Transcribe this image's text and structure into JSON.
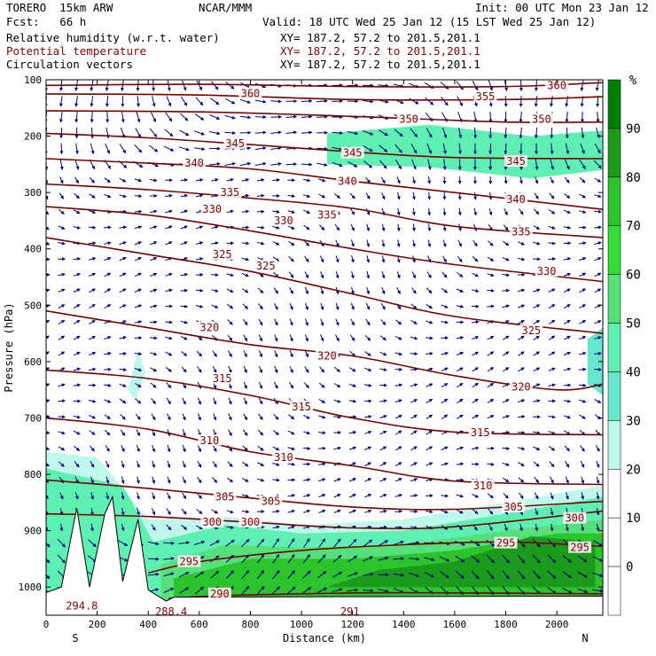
{
  "header": {
    "model": "TORERO  15km ARW",
    "center": "NCAR/MMM",
    "init": "Init: 00 UTC Mon 23 Jan 12",
    "fcst": "Fcst:   66 h",
    "valid": "Valid: 18 UTC Wed 25 Jan 12 (15 LST Wed 25 Jan 12)",
    "fields": [
      {
        "name": "Relative humidity (w.r.t. water)",
        "xy": "XY= 187.2, 57.2 to 201.5,201.1",
        "color": "#000000"
      },
      {
        "name": "Potential temperature",
        "xy": "XY= 187.2, 57.2 to 201.5,201.1",
        "color": "#8b0000"
      },
      {
        "name": "Circulation vectors",
        "xy": "XY= 187.2, 57.2 to 201.5,201.1",
        "color": "#000000"
      }
    ]
  },
  "chart_data": {
    "type": "contour",
    "xlabel": "Distance (km)",
    "ylabel": "Pressure (hPa)",
    "x_ticks": [
      0,
      200,
      400,
      600,
      800,
      1000,
      1200,
      1400,
      1600,
      1800,
      2000
    ],
    "xlim": [
      0,
      2180
    ],
    "y_ticks": [
      100,
      200,
      300,
      400,
      500,
      600,
      700,
      800,
      900,
      1000
    ],
    "ylim": [
      1050,
      100
    ],
    "x_end_labels": {
      "left": "S",
      "right": "N"
    },
    "colorbar": {
      "unit": "%",
      "ticks": [
        90,
        80,
        70,
        60,
        50,
        40,
        30,
        20,
        10,
        0
      ],
      "colors": [
        "#008000",
        "#1b9a1b",
        "#2bc42b",
        "#33dd33",
        "#55e07a",
        "#5ef0b0",
        "#66e6cc",
        "#bff7ec",
        "#ffffff",
        "#ffffff",
        "#ffffff"
      ]
    },
    "theta_contours": [
      {
        "value": 360,
        "points": [
          [
            0,
            110
          ],
          [
            600,
            108
          ],
          [
            1200,
            112
          ],
          [
            1800,
            112
          ],
          [
            2180,
            105
          ]
        ],
        "labels": [
          [
            800,
            124
          ],
          [
            2000,
            110
          ]
        ]
      },
      {
        "value": 355,
        "points": [
          [
            0,
            125
          ],
          [
            600,
            127
          ],
          [
            1200,
            135
          ],
          [
            1800,
            135
          ],
          [
            2180,
            130
          ]
        ],
        "labels": [
          [
            1720,
            130
          ]
        ]
      },
      {
        "value": 350,
        "points": [
          [
            0,
            155
          ],
          [
            600,
            157
          ],
          [
            1200,
            165
          ],
          [
            1800,
            175
          ],
          [
            2180,
            175
          ]
        ],
        "labels": [
          [
            1420,
            170
          ],
          [
            1940,
            170
          ]
        ]
      },
      {
        "value": 345,
        "points": [
          [
            0,
            195
          ],
          [
            400,
            203
          ],
          [
            800,
            215
          ],
          [
            1200,
            228
          ],
          [
            1600,
            238
          ],
          [
            2180,
            240
          ]
        ],
        "labels": [
          [
            740,
            213
          ],
          [
            1200,
            230
          ],
          [
            1840,
            245
          ]
        ]
      },
      {
        "value": 340,
        "points": [
          [
            0,
            240
          ],
          [
            400,
            248
          ],
          [
            800,
            258
          ],
          [
            1200,
            280
          ],
          [
            1600,
            300
          ],
          [
            2180,
            330
          ]
        ],
        "labels": [
          [
            580,
            248
          ],
          [
            1180,
            280
          ],
          [
            1840,
            312
          ]
        ]
      },
      {
        "value": 335,
        "points": [
          [
            0,
            285
          ],
          [
            400,
            295
          ],
          [
            800,
            310
          ],
          [
            1200,
            328
          ],
          [
            1600,
            360
          ],
          [
            2180,
            380
          ]
        ],
        "labels": [
          [
            720,
            300
          ],
          [
            1100,
            340
          ],
          [
            1860,
            370
          ]
        ]
      },
      {
        "value": 330,
        "points": [
          [
            0,
            325
          ],
          [
            400,
            340
          ],
          [
            800,
            368
          ],
          [
            1200,
            400
          ],
          [
            1600,
            428
          ],
          [
            2180,
            458
          ]
        ],
        "labels": [
          [
            650,
            330
          ],
          [
            930,
            350
          ],
          [
            1960,
            440
          ]
        ]
      },
      {
        "value": 325,
        "points": [
          [
            0,
            380
          ],
          [
            400,
            410
          ],
          [
            800,
            440
          ],
          [
            1200,
            480
          ],
          [
            1600,
            520
          ],
          [
            2180,
            550
          ]
        ],
        "labels": [
          [
            690,
            410
          ],
          [
            860,
            430
          ],
          [
            1900,
            545
          ]
        ]
      },
      {
        "value": 320,
        "points": [
          [
            0,
            510
          ],
          [
            400,
            540
          ],
          [
            800,
            570
          ],
          [
            1200,
            590
          ],
          [
            1600,
            625
          ],
          [
            2000,
            650
          ],
          [
            2180,
            640
          ]
        ],
        "labels": [
          [
            640,
            540
          ],
          [
            1100,
            590
          ],
          [
            1860,
            645
          ]
        ]
      },
      {
        "value": 315,
        "points": [
          [
            0,
            615
          ],
          [
            400,
            630
          ],
          [
            800,
            660
          ],
          [
            1200,
            700
          ],
          [
            1600,
            725
          ],
          [
            2180,
            730
          ]
        ],
        "labels": [
          [
            690,
            630
          ],
          [
            1000,
            680
          ],
          [
            1700,
            726
          ]
        ]
      },
      {
        "value": 310,
        "points": [
          [
            0,
            700
          ],
          [
            400,
            720
          ],
          [
            800,
            760
          ],
          [
            1200,
            785
          ],
          [
            1600,
            812
          ],
          [
            2180,
            818
          ]
        ],
        "labels": [
          [
            640,
            740
          ],
          [
            930,
            770
          ],
          [
            1710,
            820
          ]
        ]
      },
      {
        "value": 305,
        "points": [
          [
            0,
            810
          ],
          [
            400,
            825
          ],
          [
            800,
            842
          ],
          [
            1200,
            858
          ],
          [
            1600,
            862
          ],
          [
            2180,
            848
          ]
        ],
        "labels": [
          [
            700,
            840
          ],
          [
            880,
            848
          ],
          [
            1830,
            858
          ]
        ]
      },
      {
        "value": 300,
        "points": [
          [
            0,
            870
          ],
          [
            400,
            875
          ],
          [
            800,
            885
          ],
          [
            1200,
            895
          ],
          [
            1600,
            893
          ],
          [
            2180,
            865
          ]
        ],
        "labels": [
          [
            650,
            885
          ],
          [
            800,
            885
          ],
          [
            2070,
            878
          ]
        ]
      },
      {
        "value": 295,
        "points": [
          [
            400,
            975
          ],
          [
            600,
            955
          ],
          [
            1000,
            935
          ],
          [
            1400,
            925
          ],
          [
            1800,
            920
          ],
          [
            2180,
            928
          ]
        ],
        "labels": [
          [
            560,
            955
          ],
          [
            1800,
            922
          ],
          [
            2090,
            930
          ]
        ]
      },
      {
        "value": 290,
        "points": [
          [
            480,
            1020
          ],
          [
            700,
            1015
          ],
          [
            1000,
            1012
          ],
          [
            1400,
            1010
          ],
          [
            2180,
            1012
          ]
        ],
        "labels": [
          [
            680,
            1012
          ]
        ]
      }
    ],
    "annotations": [
      {
        "text": "294.8",
        "x": 140,
        "y": 1040,
        "color": "#8b0000"
      },
      {
        "text": "288.4",
        "x": 490,
        "y": 1050,
        "color": "#8b0000"
      },
      {
        "text": "291",
        "x": 1190,
        "y": 1050,
        "color": "#8b0000"
      }
    ]
  }
}
